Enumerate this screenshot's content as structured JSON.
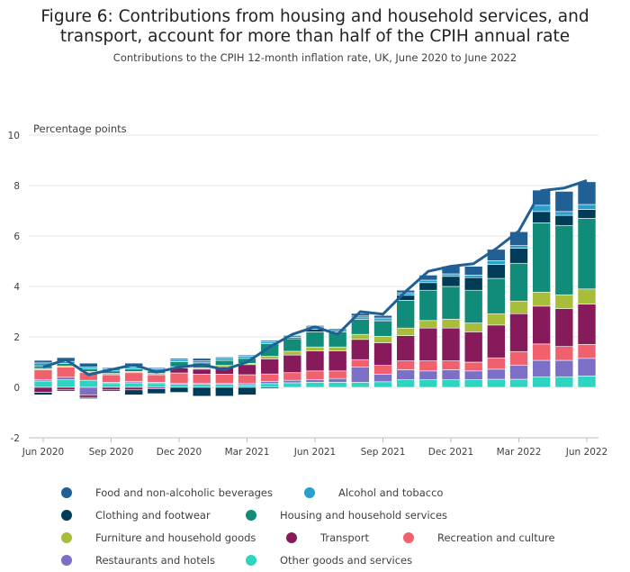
{
  "header": {
    "title_line1": "Figure 6: Contributions from housing and household services, and",
    "title_line2": "transport, account for more than half of the CPIH annual rate",
    "subtitle": "Contributions to the CPIH 12-month inflation rate, UK, June 2020 to June 2022"
  },
  "chart_data": {
    "type": "bar",
    "stacked": true,
    "ylabel": "Percentage points",
    "ylim": [
      -2,
      10
    ],
    "yticks": [
      -2,
      0,
      2,
      4,
      6,
      8,
      10
    ],
    "grid": true,
    "legend_position": "bottom",
    "categories": [
      "Jun 2020",
      "Jul 2020",
      "Aug 2020",
      "Sep 2020",
      "Oct 2020",
      "Nov 2020",
      "Dec 2020",
      "Jan 2021",
      "Feb 2021",
      "Mar 2021",
      "Apr 2021",
      "May 2021",
      "Jun 2021",
      "Jul 2021",
      "Aug 2021",
      "Sep 2021",
      "Oct 2021",
      "Nov 2021",
      "Dec 2021",
      "Jan 2022",
      "Feb 2022",
      "Mar 2022",
      "Apr 2022",
      "May 2022",
      "Jun 2022"
    ],
    "xtick_labels": [
      "Jun 2020",
      "Sep 2020",
      "Dec 2020",
      "Mar 2021",
      "Jun 2021",
      "Sep 2021",
      "Dec 2021",
      "Mar 2022",
      "Jun 2022"
    ],
    "xtick_indices": [
      0,
      3,
      6,
      9,
      12,
      15,
      18,
      21,
      24
    ],
    "series": [
      {
        "name": "Other goods and services",
        "color": "#2dd4bf",
        "values": [
          0.25,
          0.3,
          0.28,
          0.15,
          0.18,
          0.15,
          0.12,
          0.12,
          0.12,
          0.1,
          0.15,
          0.18,
          0.2,
          0.2,
          0.2,
          0.22,
          0.3,
          0.3,
          0.3,
          0.3,
          0.32,
          0.32,
          0.42,
          0.42,
          0.45
        ]
      },
      {
        "name": "Restaurants and hotels",
        "color": "#7c6fc7",
        "values": [
          0.05,
          0.1,
          -0.3,
          0.05,
          0.05,
          0.05,
          0.05,
          0.05,
          0.05,
          0.05,
          0.08,
          0.1,
          0.1,
          0.15,
          0.6,
          0.3,
          0.4,
          0.35,
          0.4,
          0.35,
          0.4,
          0.55,
          0.65,
          0.65,
          0.7
        ]
      },
      {
        "name": "Recreation and culture",
        "color": "#f0616d",
        "values": [
          0.4,
          0.4,
          0.3,
          0.3,
          0.35,
          0.3,
          0.4,
          0.35,
          0.35,
          0.35,
          0.3,
          0.3,
          0.35,
          0.3,
          0.3,
          0.35,
          0.35,
          0.4,
          0.35,
          0.35,
          0.45,
          0.55,
          0.65,
          0.55,
          0.55
        ]
      },
      {
        "name": "Transport",
        "color": "#871a5b",
        "values": [
          -0.2,
          -0.1,
          -0.1,
          -0.1,
          -0.1,
          -0.05,
          0.2,
          0.2,
          0.3,
          0.4,
          0.6,
          0.7,
          0.8,
          0.8,
          0.8,
          0.9,
          1.0,
          1.3,
          1.3,
          1.2,
          1.3,
          1.5,
          1.5,
          1.5,
          1.6
        ]
      },
      {
        "name": "Furniture and household goods",
        "color": "#a8bd3a",
        "values": [
          0.05,
          0.05,
          0.05,
          0.05,
          0.05,
          0.05,
          0.05,
          0.05,
          0.05,
          0.05,
          0.1,
          0.15,
          0.15,
          0.15,
          0.2,
          0.25,
          0.3,
          0.3,
          0.35,
          0.35,
          0.45,
          0.5,
          0.55,
          0.55,
          0.6
        ]
      },
      {
        "name": "Housing and household services",
        "color": "#118c7b",
        "values": [
          0.1,
          0.1,
          0.1,
          0.1,
          0.1,
          0.1,
          0.2,
          0.2,
          0.2,
          0.2,
          0.5,
          0.5,
          0.6,
          0.6,
          0.6,
          0.6,
          1.1,
          1.2,
          1.3,
          1.3,
          1.4,
          1.5,
          2.75,
          2.75,
          2.8
        ]
      },
      {
        "name": "Clothing and footwear",
        "color": "#003c57",
        "values": [
          -0.1,
          -0.05,
          -0.05,
          -0.05,
          -0.2,
          -0.2,
          -0.2,
          -0.35,
          -0.35,
          -0.3,
          -0.05,
          0.05,
          0.1,
          0.05,
          0.05,
          0.05,
          0.2,
          0.3,
          0.4,
          0.5,
          0.55,
          0.6,
          0.45,
          0.4,
          0.35
        ]
      },
      {
        "name": "Alcohol and tobacco",
        "color": "#27a0cc",
        "values": [
          0.12,
          0.08,
          0.08,
          0.08,
          0.08,
          0.08,
          0.08,
          0.08,
          0.08,
          0.08,
          0.08,
          0.08,
          0.1,
          0.08,
          0.08,
          0.08,
          0.1,
          0.1,
          0.1,
          0.1,
          0.15,
          0.1,
          0.25,
          0.15,
          0.2
        ]
      },
      {
        "name": "Food and non-alcoholic beverages",
        "color": "#206095",
        "values": [
          0.1,
          0.15,
          0.15,
          0.05,
          0.15,
          0.05,
          0.05,
          0.1,
          0.05,
          0.05,
          0.05,
          0.0,
          0.05,
          0.0,
          0.1,
          0.1,
          0.1,
          0.2,
          0.3,
          0.35,
          0.45,
          0.55,
          0.6,
          0.8,
          0.9
        ]
      }
    ],
    "line": {
      "name": "CPIH annual rate",
      "color": "#206095",
      "values": [
        0.8,
        1.1,
        0.5,
        0.7,
        0.9,
        0.6,
        0.8,
        0.9,
        0.7,
        1.0,
        1.6,
        2.1,
        2.4,
        2.1,
        3.0,
        2.9,
        3.8,
        4.6,
        4.8,
        4.9,
        5.5,
        6.2,
        7.8,
        7.9,
        8.2
      ]
    }
  },
  "legend": {
    "items": [
      {
        "label": "Food and non-alcoholic beverages",
        "color": "#206095"
      },
      {
        "label": "Alcohol and tobacco",
        "color": "#27a0cc"
      },
      {
        "label": "Clothing and footwear",
        "color": "#003c57"
      },
      {
        "label": "Housing and household services",
        "color": "#118c7b"
      },
      {
        "label": "Furniture and household goods",
        "color": "#a8bd3a"
      },
      {
        "label": "Transport",
        "color": "#871a5b"
      },
      {
        "label": "Recreation and culture",
        "color": "#f0616d"
      },
      {
        "label": "Restaurants and hotels",
        "color": "#7c6fc7"
      },
      {
        "label": "Other goods and services",
        "color": "#2dd4bf"
      }
    ]
  }
}
